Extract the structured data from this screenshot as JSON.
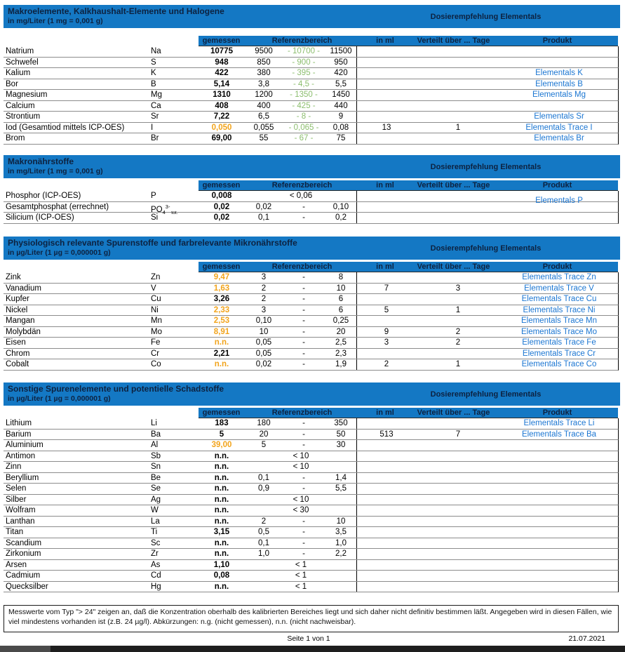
{
  "colors": {
    "header_blue": "#1478c4",
    "header_text": "#0d2240",
    "product_blue": "#1b76d2",
    "warn_orange": "#f2a41c",
    "target_green": "#8cbe6e"
  },
  "dosier_label": "Dosierempfehlung Elementals",
  "columns": {
    "gemessen": "gemessen",
    "referenzbereich": "Referenzbereich",
    "in_ml": "in ml",
    "verteilt": "Verteilt über ... Tage",
    "produkt": "Produkt"
  },
  "sections": [
    {
      "title": "Makroelemente, Kalkhaushalt-Elemente und Halogene",
      "subtitle": "in mg/Liter (1 mg = 0,001 g)",
      "rows": [
        {
          "name": "Natrium",
          "symbol": "Na",
          "value": "10775",
          "warn": false,
          "ref_type": "target",
          "ref": [
            "9500",
            "10700",
            "11500"
          ],
          "in_ml": "",
          "days": "",
          "product": ""
        },
        {
          "name": "Schwefel",
          "symbol": "S",
          "value": "948",
          "warn": false,
          "ref_type": "target",
          "ref": [
            "850",
            "900",
            "950"
          ],
          "in_ml": "",
          "days": "",
          "product": ""
        },
        {
          "name": "Kalium",
          "symbol": "K",
          "value": "422",
          "warn": false,
          "ref_type": "target",
          "ref": [
            "380",
            "395",
            "420"
          ],
          "in_ml": "",
          "days": "",
          "product": "Elementals K"
        },
        {
          "name": "Bor",
          "symbol": "B",
          "value": "5,14",
          "warn": false,
          "ref_type": "target",
          "ref": [
            "3,8",
            "4,5",
            "5,5"
          ],
          "in_ml": "",
          "days": "",
          "product": "Elementals B"
        },
        {
          "name": "Magnesium",
          "symbol": "Mg",
          "value": "1310",
          "warn": false,
          "ref_type": "target",
          "ref": [
            "1200",
            "1350",
            "1450"
          ],
          "in_ml": "",
          "days": "",
          "product": "Elementals Mg"
        },
        {
          "name": "Calcium",
          "symbol": "Ca",
          "value": "408",
          "warn": false,
          "ref_type": "target",
          "ref": [
            "400",
            "425",
            "440"
          ],
          "in_ml": "",
          "days": "",
          "product": ""
        },
        {
          "name": "Strontium",
          "symbol": "Sr",
          "value": "7,22",
          "warn": false,
          "ref_type": "target",
          "ref": [
            "6,5",
            "8",
            "9"
          ],
          "in_ml": "",
          "days": "",
          "product": "Elementals Sr"
        },
        {
          "name": "Iod (Gesamtiod mittels ICP-OES)",
          "symbol": "I",
          "value": "0,050",
          "warn": true,
          "ref_type": "target",
          "ref": [
            "0,055",
            "0,065",
            "0,08"
          ],
          "in_ml": "13",
          "days": "1",
          "product": "Elementals Trace I"
        },
        {
          "name": "Brom",
          "symbol": "Br",
          "value": "69,00",
          "warn": false,
          "ref_type": "target",
          "ref": [
            "55",
            "67",
            "75"
          ],
          "in_ml": "",
          "days": "",
          "product": "Elementals Br"
        }
      ]
    },
    {
      "title": "Makronährstoffe",
      "subtitle": "in mg/Liter (1 mg = 0,001 g)",
      "rows": [
        {
          "name": "Phosphor (ICP-OES)",
          "symbol": "P",
          "value": "0,008",
          "warn": false,
          "ref_type": "limit",
          "ref": [
            "< 0,06"
          ],
          "in_ml": "",
          "days": "",
          "product": "Elementals P",
          "product_span2": true
        },
        {
          "name": "Gesamtphosphat (errechnet)",
          "symbol": "PO",
          "symbol_sub": "4",
          "symbol_sup": "3-",
          "symbol_sub2": "tot.",
          "value": "0,02",
          "warn": false,
          "ref_type": "range",
          "ref": [
            "0,02",
            "0,10"
          ],
          "in_ml": "",
          "days": "",
          "product": ""
        },
        {
          "name": "Silicium (ICP-OES)",
          "symbol": "Si",
          "value": "0,02",
          "warn": false,
          "ref_type": "range",
          "ref": [
            "0,1",
            "0,2"
          ],
          "in_ml": "",
          "days": "",
          "product": ""
        }
      ]
    },
    {
      "title": "Physiologisch relevante Spurenstoffe und farbrelevante Mikronährstoffe",
      "subtitle": "in µg/Liter (1 µg = 0,000001 g)",
      "rows": [
        {
          "name": "Zink",
          "symbol": "Zn",
          "value": "9,47",
          "warn": true,
          "ref_type": "range",
          "ref": [
            "3",
            "8"
          ],
          "in_ml": "",
          "days": "",
          "product": "Elementals Trace Zn"
        },
        {
          "name": "Vanadium",
          "symbol": "V",
          "value": "1,63",
          "warn": true,
          "ref_type": "range",
          "ref": [
            "2",
            "10"
          ],
          "in_ml": "7",
          "days": "3",
          "product": "Elementals Trace V"
        },
        {
          "name": "Kupfer",
          "symbol": "Cu",
          "value": "3,26",
          "warn": false,
          "ref_type": "range",
          "ref": [
            "2",
            "6"
          ],
          "in_ml": "",
          "days": "",
          "product": "Elementals Trace Cu"
        },
        {
          "name": "Nickel",
          "symbol": "Ni",
          "value": "2,33",
          "warn": true,
          "ref_type": "range",
          "ref": [
            "3",
            "6"
          ],
          "in_ml": "5",
          "days": "1",
          "product": "Elementals Trace Ni"
        },
        {
          "name": "Mangan",
          "symbol": "Mn",
          "value": "2,53",
          "warn": true,
          "ref_type": "range",
          "ref": [
            "0,10",
            "0,25"
          ],
          "in_ml": "",
          "days": "",
          "product": "Elementals Trace Mn"
        },
        {
          "name": "Molybdän",
          "symbol": "Mo",
          "value": "8,91",
          "warn": true,
          "ref_type": "range",
          "ref": [
            "10",
            "20"
          ],
          "in_ml": "9",
          "days": "2",
          "product": "Elementals Trace Mo"
        },
        {
          "name": "Eisen",
          "symbol": "Fe",
          "value": "n.n.",
          "warn": true,
          "ref_type": "range",
          "ref": [
            "0,05",
            "2,5"
          ],
          "in_ml": "3",
          "days": "2",
          "product": "Elementals Trace Fe"
        },
        {
          "name": "Chrom",
          "symbol": "Cr",
          "value": "2,21",
          "warn": false,
          "ref_type": "range",
          "ref": [
            "0,05",
            "2,3"
          ],
          "in_ml": "",
          "days": "",
          "product": "Elementals Trace Cr"
        },
        {
          "name": "Cobalt",
          "symbol": "Co",
          "value": "n.n.",
          "warn": true,
          "ref_type": "range",
          "ref": [
            "0,02",
            "1,9"
          ],
          "in_ml": "2",
          "days": "1",
          "product": "Elementals Trace Co"
        }
      ]
    },
    {
      "title": "Sonstige Spurenelemente und potentielle Schadstoffe",
      "subtitle": "in µg/Liter (1 µg = 0,000001 g)",
      "rows": [
        {
          "name": "Lithium",
          "symbol": "Li",
          "value": "183",
          "warn": false,
          "ref_type": "range",
          "ref": [
            "180",
            "350"
          ],
          "in_ml": "",
          "days": "",
          "product": "Elementals Trace Li"
        },
        {
          "name": "Barium",
          "symbol": "Ba",
          "value": "5",
          "warn": false,
          "ref_type": "range",
          "ref": [
            "20",
            "50"
          ],
          "in_ml": "513",
          "days": "7",
          "product": "Elementals Trace Ba"
        },
        {
          "name": "Aluminium",
          "symbol": "Al",
          "value": "39,00",
          "warn": true,
          "ref_type": "range",
          "ref": [
            "5",
            "30"
          ],
          "in_ml": "",
          "days": "",
          "product": ""
        },
        {
          "name": "Antimon",
          "symbol": "Sb",
          "value": "n.n.",
          "warn": false,
          "ref_type": "limit",
          "ref": [
            "< 10"
          ],
          "in_ml": "",
          "days": "",
          "product": ""
        },
        {
          "name": "Zinn",
          "symbol": "Sn",
          "value": "n.n.",
          "warn": false,
          "ref_type": "limit",
          "ref": [
            "< 10"
          ],
          "in_ml": "",
          "days": "",
          "product": ""
        },
        {
          "name": "Beryllium",
          "symbol": "Be",
          "value": "n.n.",
          "warn": false,
          "ref_type": "range",
          "ref": [
            "0,1",
            "1,4"
          ],
          "in_ml": "",
          "days": "",
          "product": ""
        },
        {
          "name": "Selen",
          "symbol": "Se",
          "value": "n.n.",
          "warn": false,
          "ref_type": "range",
          "ref": [
            "0,9",
            "5,5"
          ],
          "in_ml": "",
          "days": "",
          "product": ""
        },
        {
          "name": "Silber",
          "symbol": "Ag",
          "value": "n.n.",
          "warn": false,
          "ref_type": "limit",
          "ref": [
            "< 10"
          ],
          "in_ml": "",
          "days": "",
          "product": ""
        },
        {
          "name": "Wolfram",
          "symbol": "W",
          "value": "n.n.",
          "warn": false,
          "ref_type": "limit",
          "ref": [
            "< 30"
          ],
          "in_ml": "",
          "days": "",
          "product": ""
        },
        {
          "name": "Lanthan",
          "symbol": "La",
          "value": "n.n.",
          "warn": false,
          "ref_type": "range",
          "ref": [
            "2",
            "10"
          ],
          "in_ml": "",
          "days": "",
          "product": ""
        },
        {
          "name": "Titan",
          "symbol": "Ti",
          "value": "3,15",
          "warn": false,
          "ref_type": "range",
          "ref": [
            "0,5",
            "3,5"
          ],
          "in_ml": "",
          "days": "",
          "product": ""
        },
        {
          "name": "Scandium",
          "symbol": "Sc",
          "value": "n.n.",
          "warn": false,
          "ref_type": "range",
          "ref": [
            "0,1",
            "1,0"
          ],
          "in_ml": "",
          "days": "",
          "product": ""
        },
        {
          "name": "Zirkonium",
          "symbol": "Zr",
          "value": "n.n.",
          "warn": false,
          "ref_type": "range",
          "ref": [
            "1,0",
            "2,2"
          ],
          "in_ml": "",
          "days": "",
          "product": ""
        },
        {
          "name": "Arsen",
          "symbol": "As",
          "value": "1,10",
          "warn": false,
          "ref_type": "limit",
          "ref": [
            "< 1"
          ],
          "in_ml": "",
          "days": "",
          "product": ""
        },
        {
          "name": "Cadmium",
          "symbol": "Cd",
          "value": "0,08",
          "warn": false,
          "ref_type": "limit",
          "ref": [
            "< 1"
          ],
          "in_ml": "",
          "days": "",
          "product": ""
        },
        {
          "name": "Quecksilber",
          "symbol": "Hg",
          "value": "n.n.",
          "warn": false,
          "ref_type": "limit",
          "ref": [
            "< 1"
          ],
          "in_ml": "",
          "days": "",
          "product": ""
        }
      ]
    }
  ],
  "footer": {
    "note": "Messwerte vom Typ \"> 24\" zeigen an, daß die Konzentration oberhalb des kalibrierten Bereiches liegt und sich daher nicht definitiv bestimmen läßt. Angegeben wird in diesen Fällen, wie viel mindestens vorhanden ist (z.B. 24 µg/l). Abkürzungen: n.g. (nicht gemessen), n.n. (nicht nachweisbar).",
    "page_label": "Seite 1 von 1",
    "date": "21.07.2021"
  }
}
